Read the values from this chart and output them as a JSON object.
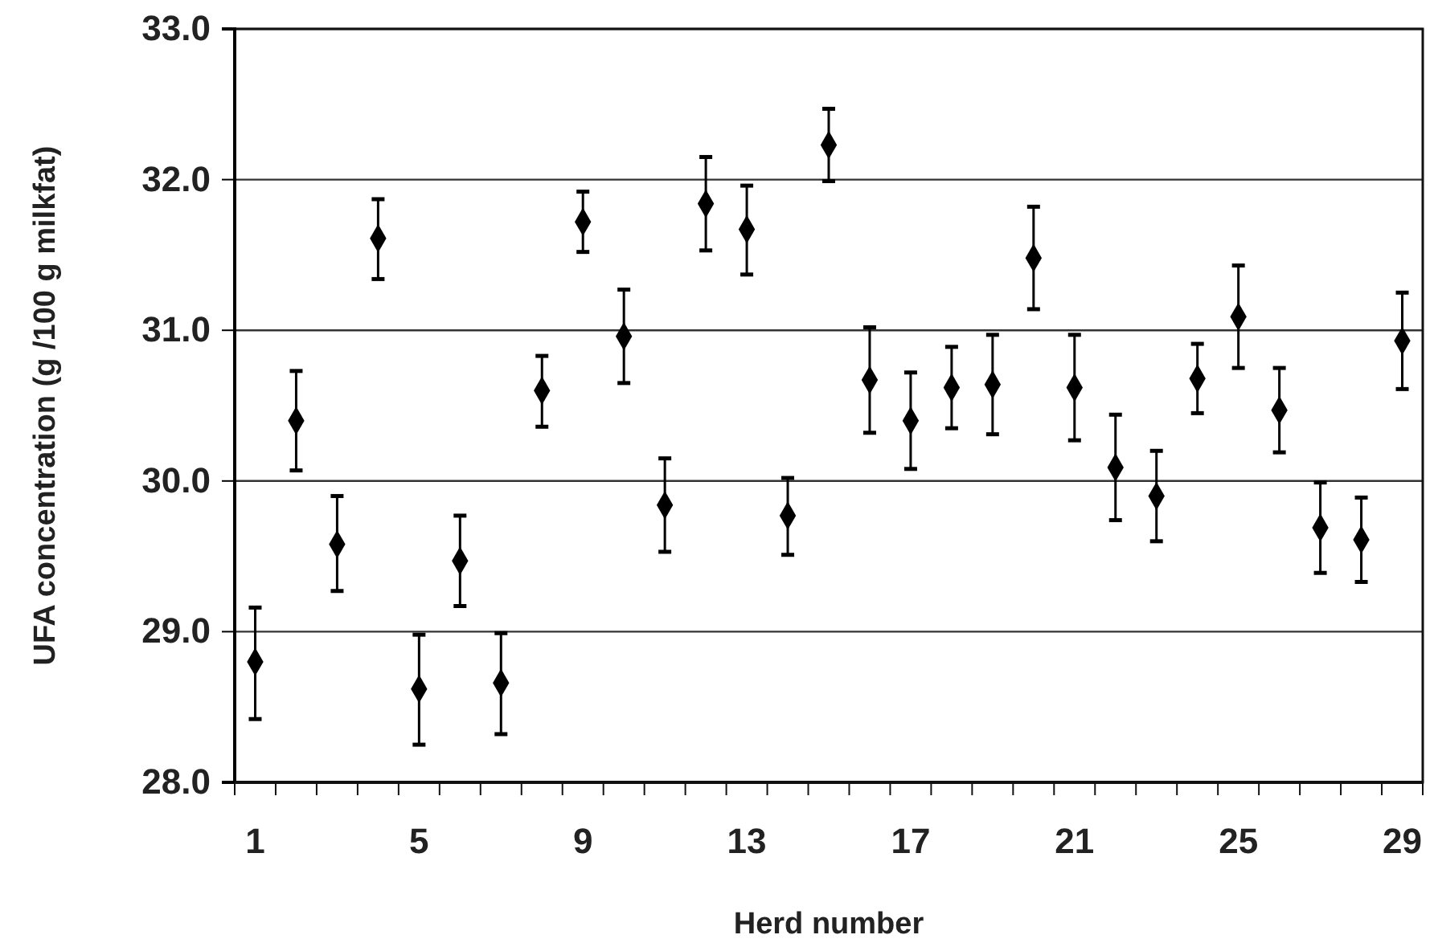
{
  "chart_data": {
    "type": "scatter",
    "xlabel": "Herd number",
    "ylabel": "UFA concentration (g  /100 g milkfat)",
    "categories": [
      "1",
      null,
      null,
      null,
      "5",
      null,
      null,
      null,
      "9",
      null,
      null,
      null,
      "13",
      null,
      null,
      null,
      "17",
      null,
      null,
      null,
      "21",
      null,
      null,
      null,
      "25",
      null,
      null,
      null,
      "29"
    ],
    "series": [
      {
        "color": "#000000",
        "values": [
          28.8,
          30.4,
          29.58,
          31.61,
          28.62,
          29.47,
          28.66,
          30.6,
          31.72,
          30.96,
          29.84,
          31.84,
          31.67,
          29.77,
          32.23,
          30.67,
          30.4,
          30.62,
          30.64,
          31.48,
          30.62,
          30.09,
          29.9,
          30.68,
          31.09,
          30.47,
          29.69,
          29.61,
          30.93
        ],
        "errors": [
          [
            28.42,
            29.16
          ],
          [
            30.07,
            30.73
          ],
          [
            29.27,
            29.9
          ],
          [
            31.34,
            31.87
          ],
          [
            28.25,
            28.98
          ],
          [
            29.17,
            29.77
          ],
          [
            28.32,
            28.99
          ],
          [
            30.36,
            30.83
          ],
          [
            31.52,
            31.92
          ],
          [
            30.65,
            31.27
          ],
          [
            29.53,
            30.15
          ],
          [
            31.53,
            32.15
          ],
          [
            31.37,
            31.96
          ],
          [
            29.51,
            30.02
          ],
          [
            31.99,
            32.47
          ],
          [
            30.32,
            31.02
          ],
          [
            30.08,
            30.72
          ],
          [
            30.35,
            30.89
          ],
          [
            30.31,
            30.97
          ],
          [
            31.14,
            31.82
          ],
          [
            30.27,
            30.97
          ],
          [
            29.74,
            30.44
          ],
          [
            29.6,
            30.2
          ],
          [
            30.45,
            30.91
          ],
          [
            30.75,
            31.43
          ],
          [
            30.19,
            30.75
          ],
          [
            29.39,
            29.99
          ],
          [
            29.33,
            29.89
          ],
          [
            30.61,
            31.25
          ]
        ]
      }
    ],
    "ylim": [
      28,
      33
    ],
    "yticks": [
      {
        "value": 28,
        "label": "28.0"
      },
      {
        "value": 29,
        "label": "29.0"
      },
      {
        "value": 30,
        "label": "30.0"
      },
      {
        "value": 31,
        "label": "31.0"
      },
      {
        "value": 32,
        "label": "32.0"
      },
      {
        "value": 33,
        "label": "33.0"
      }
    ],
    "grid": "y",
    "marker": "diamond"
  }
}
